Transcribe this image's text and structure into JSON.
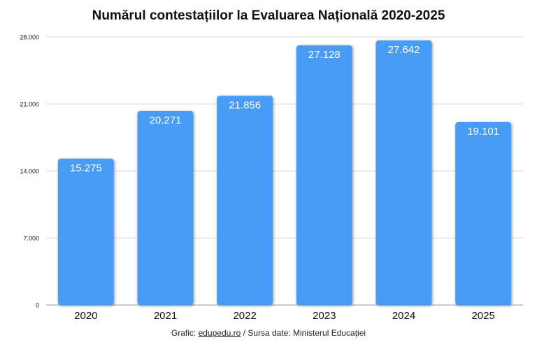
{
  "chart_data": {
    "type": "bar",
    "title": "Numărul contestațiilor la Evaluarea Națională 2020-2025",
    "categories": [
      "2020",
      "2021",
      "2022",
      "2023",
      "2024",
      "2025"
    ],
    "values": [
      15275,
      20271,
      21856,
      27128,
      27642,
      19101
    ],
    "value_labels": [
      "15.275",
      "20.271",
      "21.856",
      "27.128",
      "27.642",
      "19.101"
    ],
    "yticks": [
      0,
      7000,
      14000,
      21000,
      28000
    ],
    "ytick_labels": [
      "0",
      "7.000",
      "14.000",
      "21.000",
      "28.000"
    ],
    "ylim": [
      0,
      28000
    ],
    "grid": true,
    "legend": "none",
    "xlabel": "",
    "ylabel": "",
    "bar_color": "#4a9cf5",
    "label_color": "#ffffff",
    "grid_color": "#d9d9d9"
  },
  "footer": {
    "prefix": "Grafic: ",
    "link_text": "edupedu.ro",
    "suffix": " / Sursa date: Ministerul Educației"
  }
}
